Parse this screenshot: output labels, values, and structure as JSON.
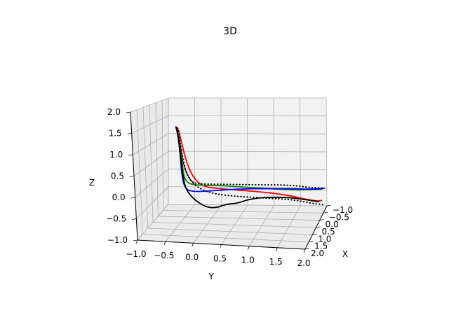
{
  "chart_data": {
    "type": "line",
    "projection": "3d",
    "title": "3D",
    "xlabel": "X",
    "ylabel": "Y",
    "zlabel": "Z",
    "x_ticks": [
      "−1.0",
      "−0.5",
      "0.0",
      "0.5",
      "1.0",
      "1.5",
      "2.0"
    ],
    "y_ticks": [
      "−1.0",
      "−0.5",
      "0.0",
      "0.5",
      "1.0",
      "1.5",
      "2.0"
    ],
    "z_ticks": [
      "−1.0",
      "−0.5",
      "0.0",
      "0.5",
      "1.0",
      "1.5",
      "2.0"
    ],
    "xlim": [
      -1.0,
      2.0
    ],
    "ylim": [
      -1.0,
      2.0
    ],
    "zlim": [
      -1.0,
      2.0
    ],
    "grid": true,
    "series": [
      {
        "color": "#ff0000",
        "style": "solid",
        "points": [
          [
            0,
            -0.6,
            2.1
          ],
          [
            0,
            -0.55,
            1.85
          ],
          [
            0,
            -0.5,
            1.5
          ],
          [
            0,
            -0.42,
            1.05
          ],
          [
            0,
            -0.3,
            0.65
          ],
          [
            0,
            -0.12,
            0.42
          ],
          [
            0,
            0.2,
            0.38
          ],
          [
            0,
            0.55,
            0.36
          ],
          [
            0,
            0.9,
            0.33
          ],
          [
            0,
            1.2,
            0.3
          ],
          [
            0,
            1.5,
            0.24
          ],
          [
            0,
            1.75,
            0.16
          ],
          [
            0,
            1.95,
            0.12
          ],
          [
            0,
            2.05,
            0.14
          ]
        ]
      },
      {
        "color": "#008000",
        "style": "solid",
        "points": [
          [
            0,
            -0.62,
            2.1
          ],
          [
            0,
            -0.57,
            1.8
          ],
          [
            0,
            -0.53,
            1.35
          ],
          [
            0,
            -0.5,
            0.85
          ],
          [
            0,
            -0.45,
            0.55
          ],
          [
            0,
            -0.3,
            0.46
          ],
          [
            0,
            0.1,
            0.48
          ],
          [
            0,
            0.5,
            0.46
          ],
          [
            0,
            0.9,
            0.44
          ],
          [
            0,
            1.3,
            0.42
          ],
          [
            0,
            1.6,
            0.42
          ],
          [
            0,
            1.85,
            0.44
          ],
          [
            0,
            2.05,
            0.46
          ]
        ]
      },
      {
        "color": "#0000ff",
        "style": "solid",
        "points": [
          [
            0,
            -0.63,
            2.12
          ],
          [
            0,
            -0.58,
            1.82
          ],
          [
            0,
            -0.55,
            1.3
          ],
          [
            0,
            -0.52,
            0.75
          ],
          [
            0,
            -0.47,
            0.38
          ],
          [
            0,
            -0.35,
            0.27
          ],
          [
            0,
            0.0,
            0.31
          ],
          [
            0,
            0.3,
            0.36
          ],
          [
            0,
            0.7,
            0.41
          ],
          [
            0,
            1.1,
            0.43
          ],
          [
            0,
            1.5,
            0.45
          ],
          [
            0,
            1.85,
            0.45
          ],
          [
            0,
            2.1,
            0.49
          ]
        ]
      },
      {
        "color": "#000000",
        "style": "solid",
        "points": [
          [
            0,
            -0.62,
            2.1
          ],
          [
            0,
            -0.58,
            1.75
          ],
          [
            0,
            -0.54,
            1.2
          ],
          [
            0,
            -0.5,
            0.7
          ],
          [
            0,
            -0.45,
            0.35
          ],
          [
            0,
            -0.32,
            0.08
          ],
          [
            0,
            -0.1,
            -0.15
          ],
          [
            0,
            0.1,
            -0.18
          ],
          [
            0,
            0.3,
            -0.05
          ],
          [
            0,
            0.5,
            -0.02
          ],
          [
            0,
            0.7,
            0.1
          ],
          [
            0,
            1.0,
            0.18
          ],
          [
            0,
            1.4,
            0.2
          ],
          [
            0,
            1.7,
            0.16
          ],
          [
            0,
            2.0,
            0.1
          ]
        ]
      },
      {
        "color": "#000000",
        "style": "dotted",
        "points": [
          [
            0,
            -0.58,
            2.0
          ],
          [
            0,
            -0.55,
            1.65
          ],
          [
            0,
            -0.5,
            1.2
          ],
          [
            0,
            -0.45,
            0.85
          ],
          [
            0,
            -0.35,
            0.55
          ],
          [
            0,
            -0.2,
            0.5
          ],
          [
            0,
            0.1,
            0.51
          ],
          [
            0,
            0.5,
            0.52
          ],
          [
            0,
            0.9,
            0.53
          ],
          [
            0,
            1.3,
            0.55
          ],
          [
            0,
            1.6,
            0.54
          ],
          [
            0,
            1.85,
            0.5
          ],
          [
            0,
            2.1,
            0.5
          ]
        ]
      },
      {
        "color": "#000000",
        "style": "dotted",
        "points": [
          [
            0,
            -0.56,
            1.6
          ],
          [
            0,
            -0.5,
            1.05
          ],
          [
            0,
            -0.38,
            0.62
          ],
          [
            0,
            -0.2,
            0.36
          ],
          [
            0,
            0.1,
            0.22
          ],
          [
            0,
            0.5,
            0.18
          ],
          [
            0,
            0.9,
            0.16
          ],
          [
            0,
            1.3,
            0.15
          ],
          [
            0,
            1.6,
            0.12
          ],
          [
            0,
            1.85,
            0.05
          ],
          [
            0,
            2.1,
            0.02
          ]
        ]
      }
    ]
  }
}
